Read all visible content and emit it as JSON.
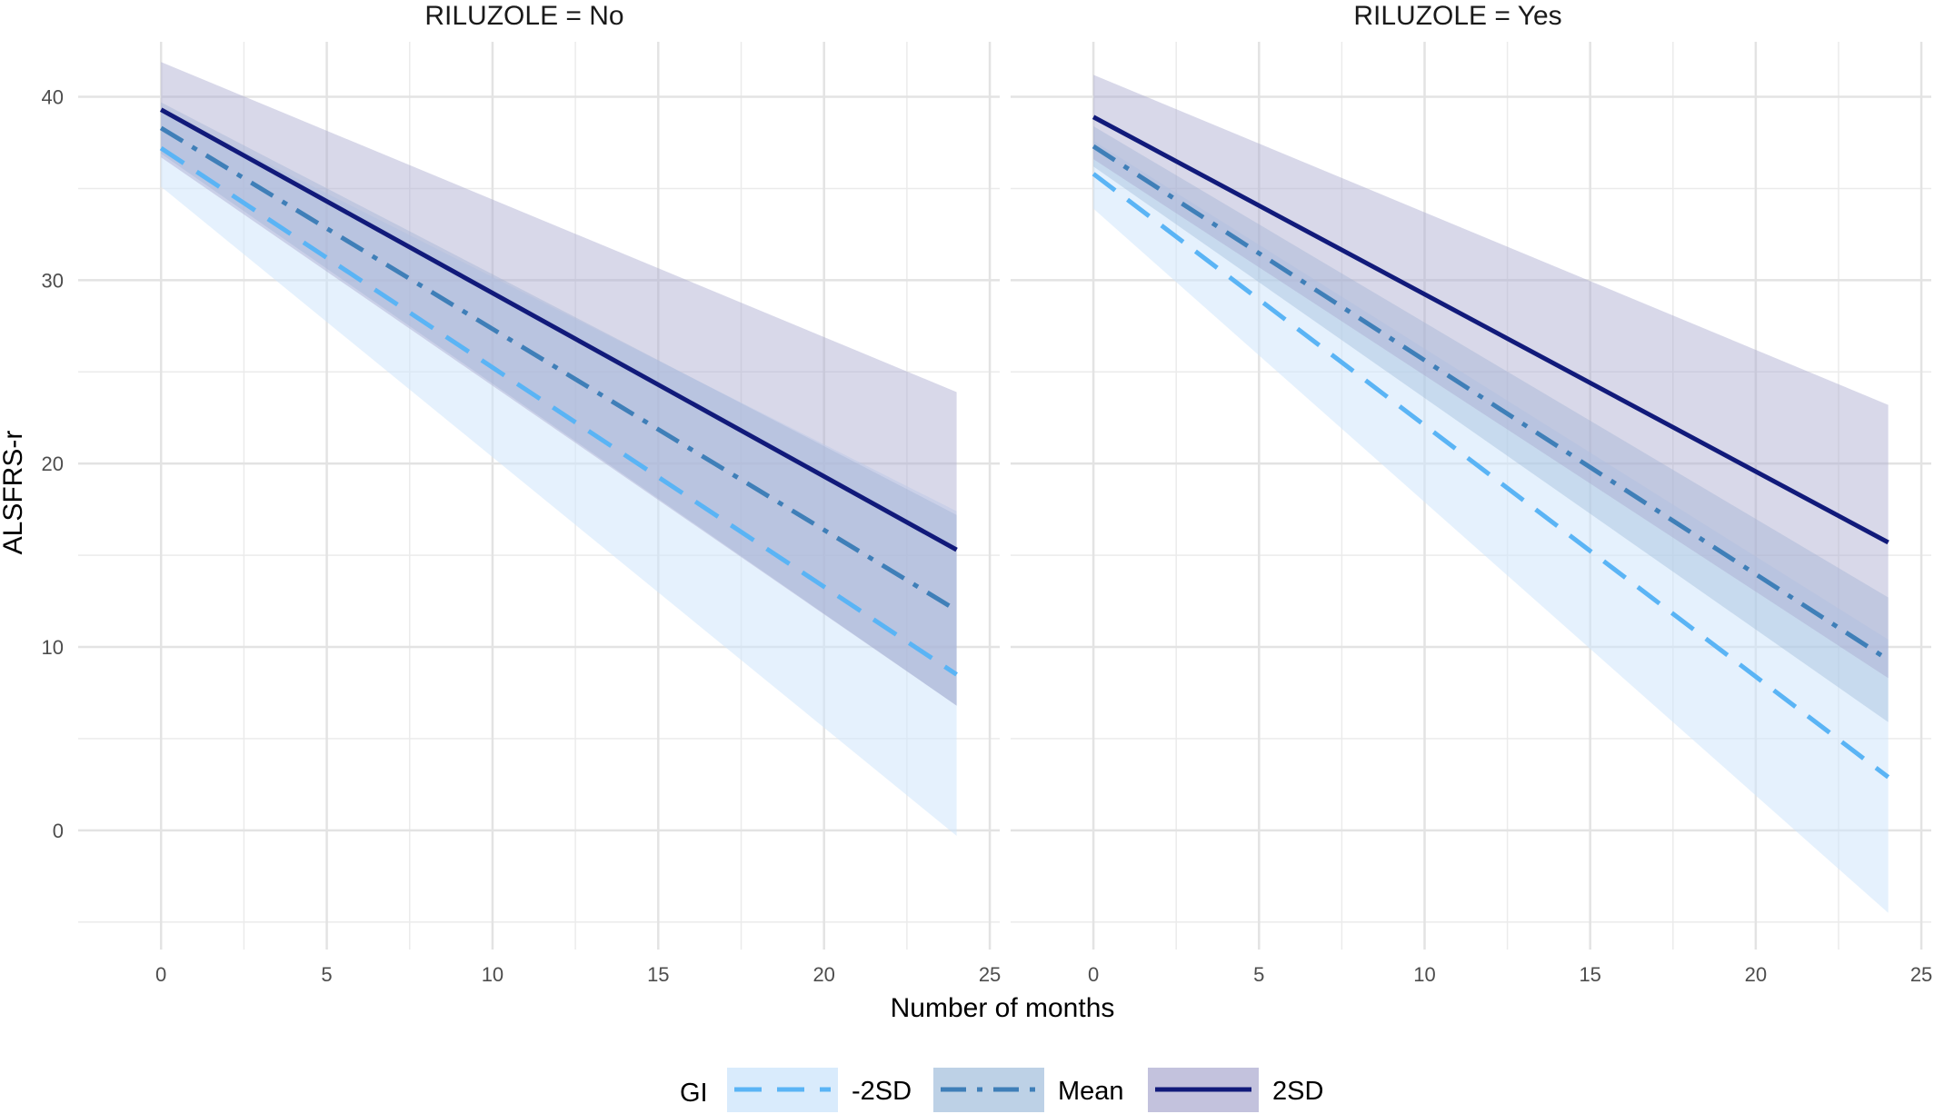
{
  "chart_data": {
    "type": "line",
    "xlabel": "Number of months",
    "ylabel": "ALSFRS-r",
    "xlim": [
      -2.5,
      25.3
    ],
    "ylim": [
      -6.5,
      43.0
    ],
    "x_ticks": [
      0,
      5,
      10,
      15,
      20,
      25
    ],
    "y_ticks": [
      0,
      10,
      20,
      30,
      40
    ],
    "grid": true,
    "legend_position": "bottom",
    "legend": {
      "title": "GI",
      "entries": [
        {
          "key": "m2sd",
          "label": "-2SD"
        },
        {
          "key": "mean",
          "label": "Mean"
        },
        {
          "key": "p2sd",
          "label": "2SD"
        }
      ]
    },
    "style": {
      "m2sd": {
        "line": "#5ab4f5",
        "fill": "#cfe6fb",
        "fill_opacity": 0.55,
        "dash": "30,17",
        "width": 5
      },
      "mean": {
        "line": "#3f7fb8",
        "fill": "#9dbad9",
        "fill_opacity": 0.42,
        "dash": "28,12,6,12",
        "width": 5
      },
      "p2sd": {
        "line": "#111a7a",
        "fill": "#a9a8cf",
        "fill_opacity": 0.45,
        "dash": "",
        "width": 5
      }
    },
    "panels": [
      {
        "title": "RILUZOLE = No",
        "series": [
          {
            "key": "m2sd",
            "name": "-2SD",
            "x": [
              0,
              24
            ],
            "y": [
              37.2,
              8.5
            ],
            "ci_lower": [
              35.1,
              -0.3
            ],
            "ci_upper": [
              39.3,
              17.4
            ]
          },
          {
            "key": "mean",
            "name": "Mean",
            "x": [
              0,
              24
            ],
            "y": [
              38.3,
              12.0
            ],
            "ci_lower": [
              36.9,
              6.8
            ],
            "ci_upper": [
              39.7,
              17.2
            ]
          },
          {
            "key": "p2sd",
            "name": "2SD",
            "x": [
              0,
              24
            ],
            "y": [
              39.3,
              15.3
            ],
            "ci_lower": [
              36.7,
              6.8
            ],
            "ci_upper": [
              41.9,
              23.9
            ]
          }
        ]
      },
      {
        "title": "RILUZOLE = Yes",
        "series": [
          {
            "key": "m2sd",
            "name": "-2SD",
            "x": [
              0,
              24
            ],
            "y": [
              35.8,
              2.9
            ],
            "ci_lower": [
              33.9,
              -4.5
            ],
            "ci_upper": [
              37.6,
              10.4
            ]
          },
          {
            "key": "mean",
            "name": "Mean",
            "x": [
              0,
              24
            ],
            "y": [
              37.3,
              9.3
            ],
            "ci_lower": [
              36.2,
              5.9
            ],
            "ci_upper": [
              38.4,
              12.7
            ]
          },
          {
            "key": "p2sd",
            "name": "2SD",
            "x": [
              0,
              24
            ],
            "y": [
              38.9,
              15.7
            ],
            "ci_lower": [
              36.6,
              8.3
            ],
            "ci_upper": [
              41.2,
              23.2
            ]
          }
        ]
      }
    ]
  }
}
